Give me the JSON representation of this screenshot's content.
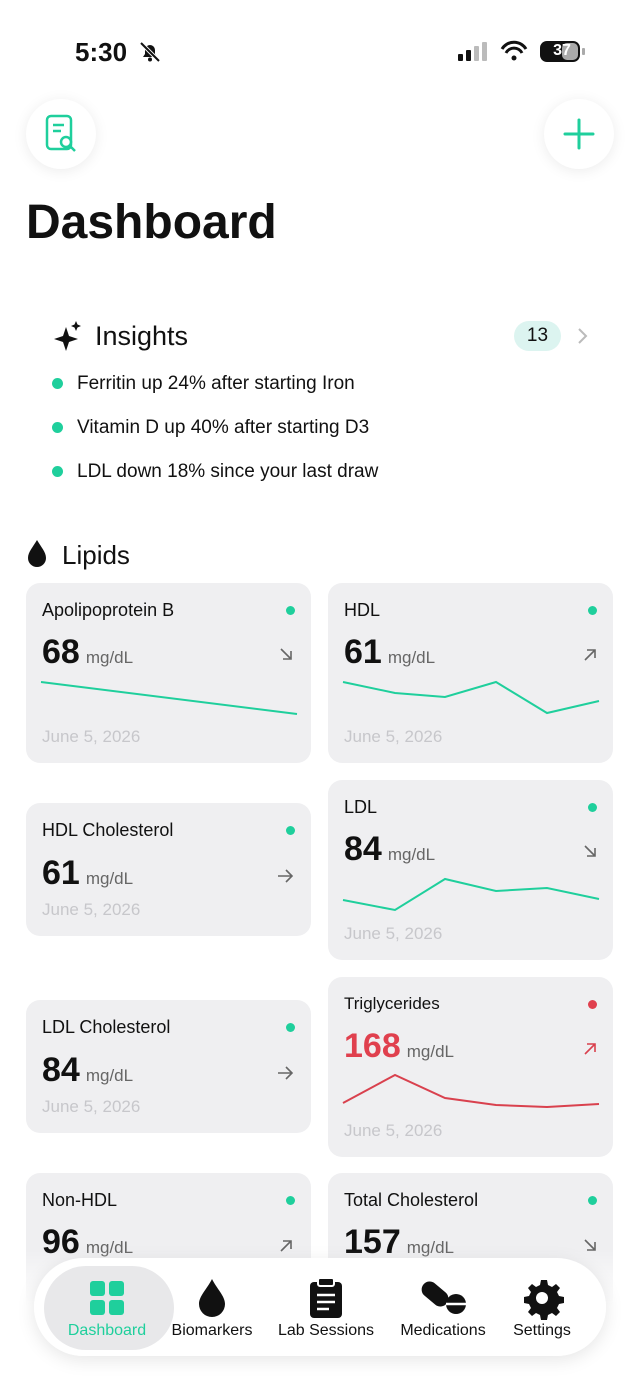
{
  "status": {
    "time": "5:30",
    "battery": "37"
  },
  "header": {
    "title": "Dashboard"
  },
  "insights": {
    "title": "Insights",
    "count": "13",
    "items": [
      "Ferritin up 24% after starting Iron",
      "Vitamin D up 40% after starting D3",
      "LDL down 18% since your last draw"
    ]
  },
  "section": {
    "title": "Lipids"
  },
  "cards": [
    {
      "name": "Apolipoprotein B",
      "value": "68",
      "unit": "mg/dL",
      "date": "June 5, 2026"
    },
    {
      "name": "HDL",
      "value": "61",
      "unit": "mg/dL",
      "date": "June 5, 2026"
    },
    {
      "name": "HDL Cholesterol",
      "value": "61",
      "unit": "mg/dL",
      "date": "June 5, 2026"
    },
    {
      "name": "LDL",
      "value": "84",
      "unit": "mg/dL",
      "date": "June 5, 2026"
    },
    {
      "name": "LDL Cholesterol",
      "value": "84",
      "unit": "mg/dL",
      "date": "June 5, 2026"
    },
    {
      "name": "Triglycerides",
      "value": "168",
      "unit": "mg/dL",
      "date": "June 5, 2026"
    },
    {
      "name": "Non-HDL",
      "value": "96",
      "unit": "mg/dL"
    },
    {
      "name": "Total Cholesterol",
      "value": "157",
      "unit": "mg/dL"
    }
  ],
  "nav": [
    "Dashboard",
    "Biomarkers",
    "Lab Sessions",
    "Medications",
    "Settings"
  ]
}
